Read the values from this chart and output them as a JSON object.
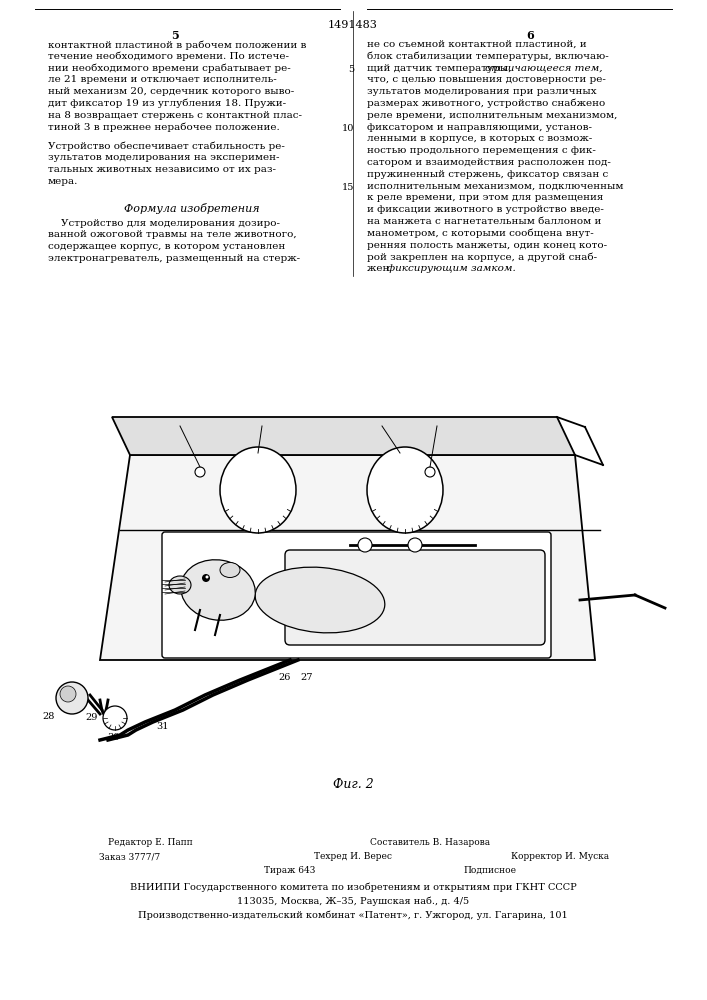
{
  "patent_number": "1491483",
  "col_left_num": "5",
  "col_right_num": "6",
  "page_bg": "#ffffff",
  "fig_caption": "Фиг. 2",
  "left_col_lines": [
    "контактной пластиной в рабочем положении в",
    "течение необходимого времени. По истече-",
    "нии необходимого времени срабатывает ре-",
    "ле 21 времени и отключает исполнитель-",
    "ный механизм 20, сердечник которого выво-",
    "дит фиксатор 19 из углубления 18. Пружи-",
    "на 8 возвращает стержень с контактной плас-",
    "тиной 3 в прежнее нерабочее положение."
  ],
  "left_col_lines2": [
    "Устройство обеспечивает стабильность ре-",
    "зультатов моделирования на эксперимен-",
    "тальных животных независимо от их раз-",
    "мера."
  ],
  "formula_title": "Формула изобретения",
  "formula_lines": [
    "    Устройство для моделирования дозиро-",
    "ванной ожоговой травмы на теле животного,",
    "содержащее корпус, в котором установлен",
    "электронагреватель, размещенный на стерж-"
  ],
  "right_col_lines": [
    "не со съемной контактной пластиной, и",
    "блок стабилизации температуры, включаю-",
    "щий датчик температуры, отличающееся тем,",
    "что, с целью повышения достоверности ре-",
    "зультатов моделирования при различных",
    "размерах животного, устройство снабжено",
    "реле времени, исполнительным механизмом,",
    "фиксатором и направляющими, установ-",
    "ленными в корпусе, в которых с возмож-",
    "ностью продольного перемещения с фик-",
    "сатором и взаимодействия расположен под-",
    "пружиненный стержень, фиксатор связан с",
    "исполнительным механизмом, подключенным",
    "к реле времени, при этом для размещения",
    "и фиксации животного в устройство введе-",
    "на манжета с нагнетательным баллоном и",
    "манометром, с которыми сообщена внут-",
    "ренняя полость манжеты, один конец кото-",
    "рой закреплен на корпусе, а другой снаб-",
    "жен фиксирующим замком."
  ],
  "bottom_line1a": "Редактор Е. Папп",
  "bottom_line1b": "Составитель В. Назарова",
  "bottom_line2a": "Заказ 3777/7",
  "bottom_line2b": "Техред И. Верес",
  "bottom_line2c": "Корректор И. Муска",
  "bottom_line3a": "Тираж 643",
  "bottom_line3b": "Подписное",
  "bottom_line4": "ВНИИПИ Государственного комитета по изобретениям и открытиям при ГКНТ СССР",
  "bottom_line5": "113035, Москва, Ж–35, Раушская наб., д. 4/5",
  "bottom_line6": "Производственно-издательский комбинат «Патент», г. Ужгород, ул. Гагарина, 101"
}
